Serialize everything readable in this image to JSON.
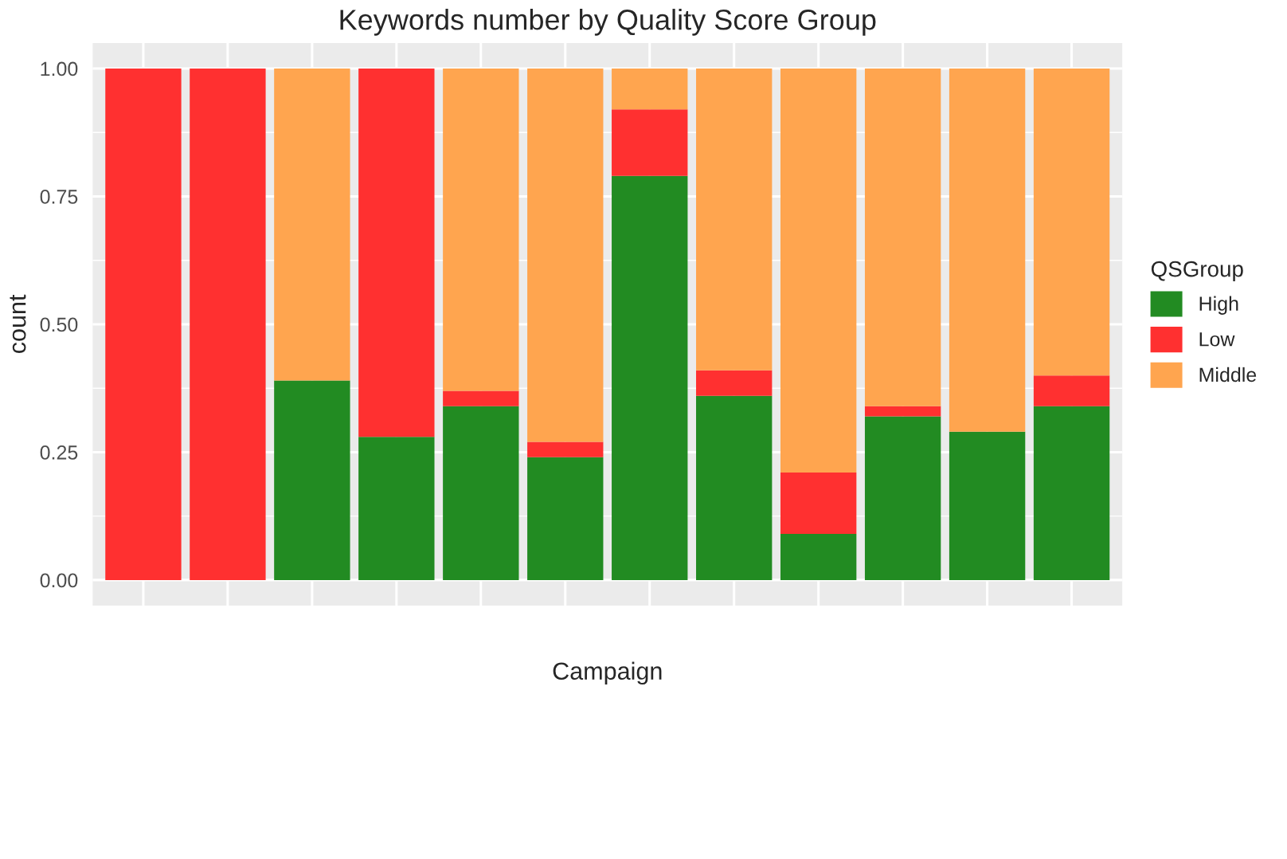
{
  "chart_data": {
    "type": "bar",
    "title": "Keywords number by Quality Score Group",
    "xlabel": "Campaign",
    "ylabel": "count",
    "legend_title": "QSGroup",
    "categories": [
      null,
      null,
      null,
      null,
      null,
      null,
      null,
      null,
      null,
      null,
      null,
      null
    ],
    "stacked": true,
    "series": [
      {
        "name": "High",
        "color": "#228b22",
        "values": [
          0,
          0,
          0.39,
          0.28,
          0.34,
          0.24,
          0.79,
          0.36,
          0.09,
          0.32,
          0.29,
          0.34
        ]
      },
      {
        "name": "Low",
        "color": "#ff3030",
        "values": [
          1,
          1,
          0,
          0.72,
          0.03,
          0.03,
          0.13,
          0.05,
          0.12,
          0.02,
          0,
          0.06
        ]
      },
      {
        "name": "Middle",
        "color": "#ffa54f",
        "values": [
          0,
          0,
          0.61,
          0,
          0.63,
          0.73,
          0.08,
          0.59,
          0.79,
          0.66,
          0.71,
          0.6
        ]
      }
    ],
    "ylim": [
      -0.05,
      1.05
    ],
    "yticks": [
      {
        "value": 0,
        "label": "0.00"
      },
      {
        "value": 0.25,
        "label": "0.25"
      },
      {
        "value": 0.5,
        "label": "0.50"
      },
      {
        "value": 0.75,
        "label": "0.75"
      },
      {
        "value": 1,
        "label": "1.00"
      }
    ],
    "grid": true,
    "legend": "right",
    "tick_labels": "y"
  }
}
